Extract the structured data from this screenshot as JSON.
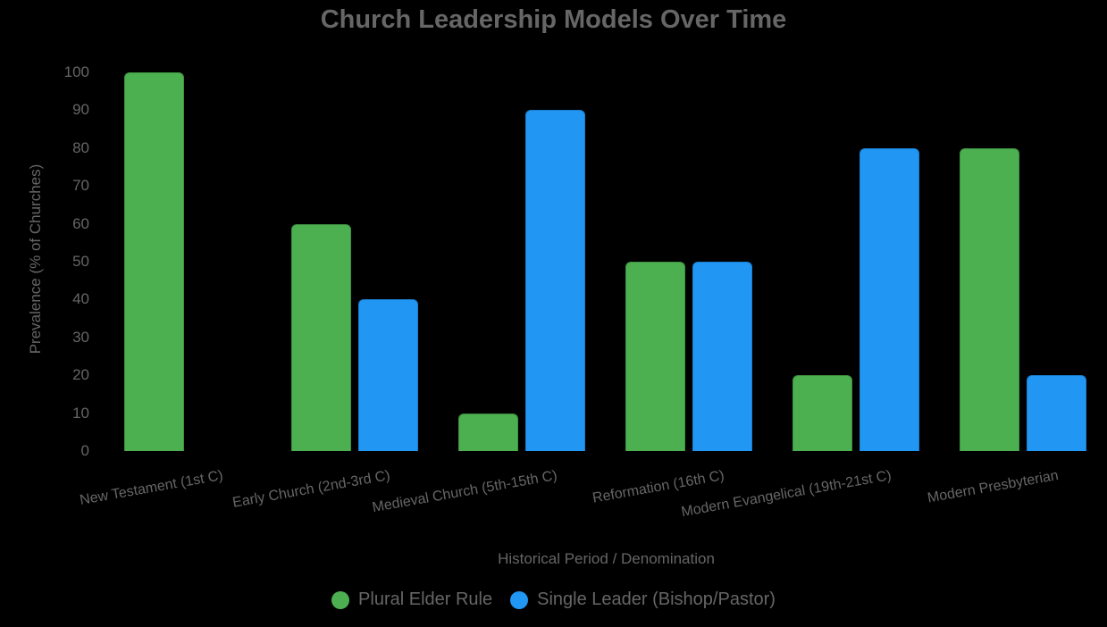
{
  "chart_data": {
    "type": "bar",
    "title": "Church Leadership Models Over Time",
    "xlabel": "Historical Period / Denomination",
    "ylabel": "Prevalence (% of Churches)",
    "ylim": [
      0,
      100
    ],
    "yticks": [
      0,
      10,
      20,
      30,
      40,
      50,
      60,
      70,
      80,
      90,
      100
    ],
    "grid": false,
    "legend_position": "bottom",
    "categories": [
      "New Testament (1st C)",
      "Early Church (2nd-3rd C)",
      "Medieval Church (5th-15th C)",
      "Reformation (16th C)",
      "Modern Evangelical (19th-21st C)",
      "Modern Presbyterian"
    ],
    "series": [
      {
        "name": "Plural Elder Rule",
        "color": "#4caf50",
        "border": "#3d9140",
        "values": [
          100,
          60,
          10,
          50,
          20,
          80
        ]
      },
      {
        "name": "Single Leader (Bishop/Pastor)",
        "color": "#2196f3",
        "border": "#1a7fd1",
        "values": [
          0,
          40,
          90,
          50,
          80,
          20
        ]
      }
    ]
  },
  "colors": {
    "background": "#000000",
    "text": "#666666"
  }
}
